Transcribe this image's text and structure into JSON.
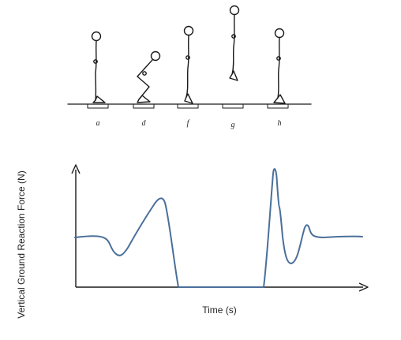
{
  "figure": {
    "phases": [
      {
        "label": "a",
        "pose": "standing"
      },
      {
        "label": "d",
        "pose": "crouching"
      },
      {
        "label": "f",
        "pose": "extending"
      },
      {
        "label": "g",
        "pose": "airborne"
      },
      {
        "label": "h",
        "pose": "landed"
      }
    ],
    "y_axis_label": "Vertical Ground Reaction Force (N)",
    "x_axis_label": "Time (s)",
    "curve_color": "#4a6f9a",
    "stick_color": "#1a1a1a"
  }
}
